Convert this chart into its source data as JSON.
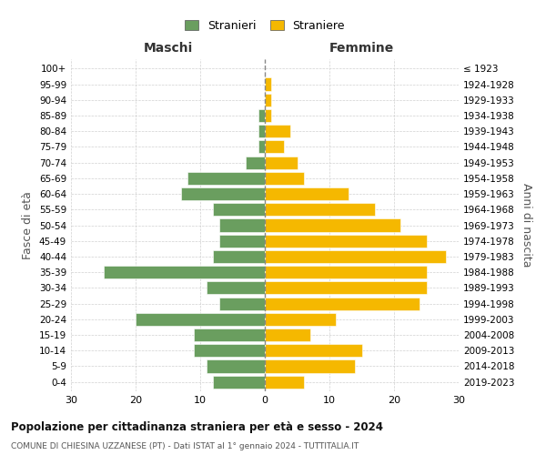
{
  "age_groups": [
    "0-4",
    "5-9",
    "10-14",
    "15-19",
    "20-24",
    "25-29",
    "30-34",
    "35-39",
    "40-44",
    "45-49",
    "50-54",
    "55-59",
    "60-64",
    "65-69",
    "70-74",
    "75-79",
    "80-84",
    "85-89",
    "90-94",
    "95-99",
    "100+"
  ],
  "birth_years": [
    "2019-2023",
    "2014-2018",
    "2009-2013",
    "2004-2008",
    "1999-2003",
    "1994-1998",
    "1989-1993",
    "1984-1988",
    "1979-1983",
    "1974-1978",
    "1969-1973",
    "1964-1968",
    "1959-1963",
    "1954-1958",
    "1949-1953",
    "1944-1948",
    "1939-1943",
    "1934-1938",
    "1929-1933",
    "1924-1928",
    "≤ 1923"
  ],
  "males": [
    8,
    9,
    11,
    11,
    20,
    7,
    9,
    25,
    8,
    7,
    7,
    8,
    13,
    12,
    3,
    1,
    1,
    1,
    0,
    0,
    0
  ],
  "females": [
    6,
    14,
    15,
    7,
    11,
    24,
    25,
    25,
    28,
    25,
    21,
    17,
    13,
    6,
    5,
    3,
    4,
    1,
    1,
    1,
    0
  ],
  "male_color": "#6a9e5f",
  "female_color": "#f5b800",
  "bar_edge_color": "white",
  "title": "Popolazione per cittadinanza straniera per età e sesso - 2024",
  "subtitle": "COMUNE DI CHIESINA UZZANESE (PT) - Dati ISTAT al 1° gennaio 2024 - TUTTITALIA.IT",
  "ylabel_left": "Fasce di età",
  "ylabel_right": "Anni di nascita",
  "xlabel_left": "Maschi",
  "xlabel_right": "Femmine",
  "legend_stranieri": "Stranieri",
  "legend_straniere": "Straniere",
  "xlim": 30,
  "background_color": "#ffffff",
  "grid_color": "#cccccc"
}
